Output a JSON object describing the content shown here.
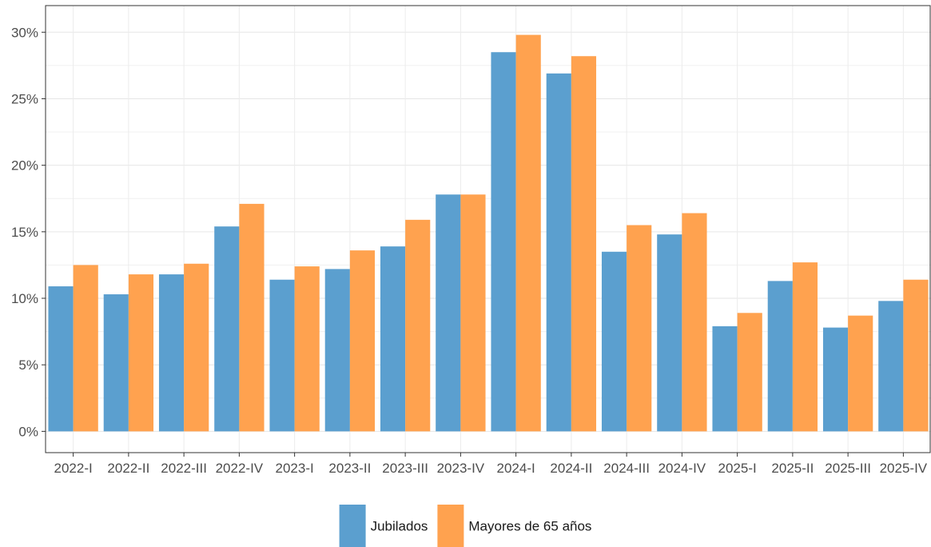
{
  "chart_data": {
    "type": "bar",
    "title": "",
    "xlabel": "",
    "ylabel": "",
    "categories": [
      "2022-I",
      "2022-II",
      "2022-III",
      "2022-IV",
      "2023-I",
      "2023-II",
      "2023-III",
      "2023-IV",
      "2024-I",
      "2024-II",
      "2024-III",
      "2024-IV",
      "2025-I",
      "2025-II",
      "2025-III",
      "2025-IV"
    ],
    "series": [
      {
        "name": "Jubilados",
        "color": "#5b9fcf",
        "values": [
          10.9,
          10.3,
          11.8,
          15.4,
          11.4,
          12.2,
          13.9,
          17.8,
          28.5,
          26.9,
          13.5,
          14.8,
          7.9,
          11.3,
          7.8,
          9.8
        ]
      },
      {
        "name": "Mayores de 65 años",
        "color": "#ffa24f",
        "values": [
          12.5,
          11.8,
          12.6,
          17.1,
          12.4,
          13.6,
          15.9,
          17.8,
          29.8,
          28.2,
          15.5,
          16.4,
          8.9,
          12.7,
          8.7,
          11.4
        ]
      }
    ],
    "ylim": [
      -1.6,
      32
    ],
    "y_ticks": [
      0,
      5,
      10,
      15,
      20,
      25,
      30
    ],
    "y_tick_labels": [
      "0%",
      "5%",
      "10%",
      "15%",
      "20%",
      "25%",
      "30%"
    ],
    "grid": true,
    "legend_position": "bottom"
  }
}
